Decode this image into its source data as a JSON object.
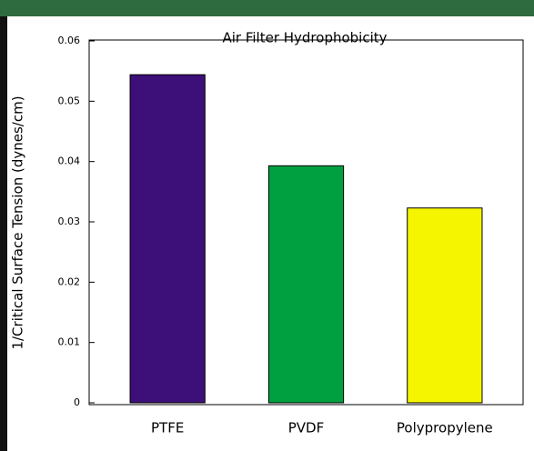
{
  "chart_data": {
    "type": "bar",
    "title": "Air Filter Hydrophobicity",
    "ylabel": "1/Critical Surface Tension (dynes/cm)",
    "categories": [
      "PTFE",
      "PVDF",
      "Polypropylene"
    ],
    "values": [
      0.0544,
      0.0393,
      0.0323
    ],
    "colors": [
      "#3d0f78",
      "#00a040",
      "#f5f500"
    ],
    "ylim": [
      0,
      0.06
    ],
    "yticks": [
      0,
      0.01,
      0.02,
      0.03,
      0.04,
      0.05,
      0.06
    ],
    "grid": false
  }
}
